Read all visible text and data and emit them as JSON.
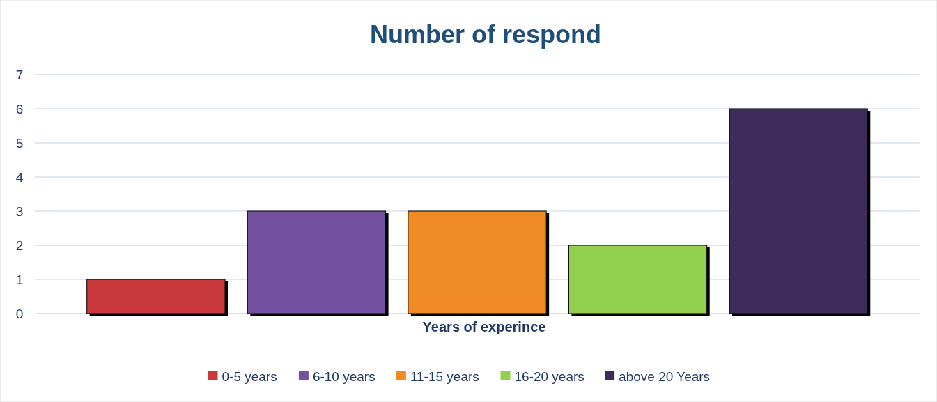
{
  "chart_data": {
    "type": "bar",
    "title": "Number of respond",
    "xlabel": "Years of experince",
    "categories": [
      null
    ],
    "series": [
      {
        "name": "0-5 years",
        "color": "#c9383a",
        "values": [
          1
        ]
      },
      {
        "name": "6-10 years",
        "color": "#7451a0",
        "values": [
          3
        ]
      },
      {
        "name": "11-15 years",
        "color": "#f08a24",
        "values": [
          3
        ]
      },
      {
        "name": "16-20 years",
        "color": "#92d050",
        "values": [
          2
        ]
      },
      {
        "name": "above 20 Years",
        "color": "#3d2b5a",
        "values": [
          6
        ]
      }
    ],
    "ylim": [
      0,
      7
    ],
    "yticks": [
      0,
      1,
      2,
      3,
      4,
      5,
      6,
      7
    ],
    "grid": "y",
    "legend": "bottom"
  }
}
